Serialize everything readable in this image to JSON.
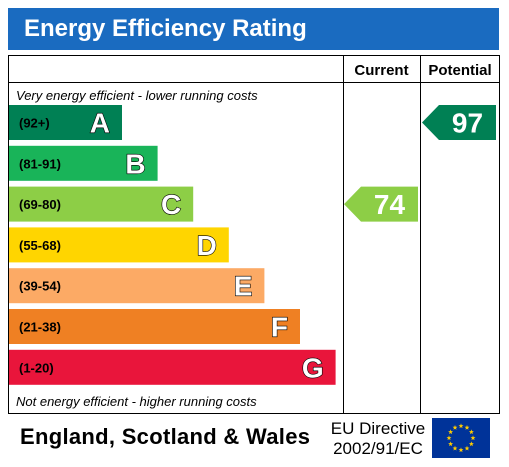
{
  "title": "Energy Efficiency Rating",
  "columns": {
    "current": "Current",
    "potential": "Potential"
  },
  "top_note": "Very energy efficient - lower running costs",
  "bottom_note": "Not energy efficient - higher running costs",
  "footer": {
    "country": "England, Scotland & Wales",
    "directive_line1": "EU Directive",
    "directive_line2": "2002/91/EC"
  },
  "colors": {
    "title_bar": "#1a6bc0",
    "border": "#000000",
    "flag_blue": "#003399",
    "flag_star": "#ffcc00"
  },
  "chart_data": {
    "type": "bar",
    "title": "Energy Efficiency Rating",
    "bands": [
      {
        "letter": "A",
        "range": "(92+)",
        "color": "#008054"
      },
      {
        "letter": "B",
        "range": "(81-91)",
        "color": "#19b459"
      },
      {
        "letter": "C",
        "range": "(69-80)",
        "color": "#8dce46"
      },
      {
        "letter": "D",
        "range": "(55-68)",
        "color": "#ffd500"
      },
      {
        "letter": "E",
        "range": "(39-54)",
        "color": "#fcaa65"
      },
      {
        "letter": "F",
        "range": "(21-38)",
        "color": "#ef8023"
      },
      {
        "letter": "G",
        "range": "(1-20)",
        "color": "#e9153b"
      }
    ],
    "current": {
      "value": 74,
      "band": "C",
      "color": "#8dce46"
    },
    "potential": {
      "value": 97,
      "band": "A",
      "color": "#008054"
    }
  }
}
